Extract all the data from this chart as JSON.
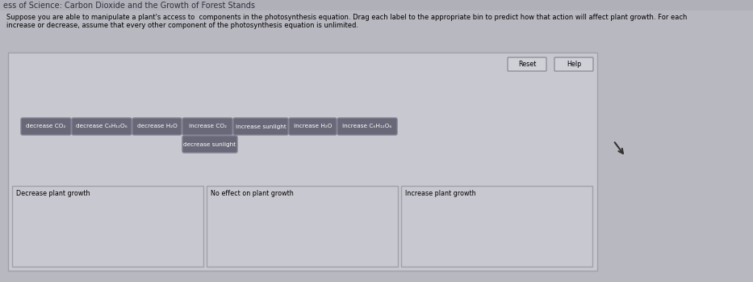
{
  "title_bar": "ess of Science: Carbon Dioxide and the Growth of Forest Stands",
  "instruction_line1": "Suppose you are able to manipulate a plant's access to  components in the photosynthesis equation. Drag each label to the appropriate bin to predict how that action will affect plant growth. For each",
  "instruction_line2": "increase or decrease, assume that every other component of the photosynthesis equation is unlimited.",
  "title_bg": "#b0b0b8",
  "body_bg": "#b8b8c0",
  "panel_bg": "#c8c8d0",
  "panel_border": "#a0a0a8",
  "btn_label_bg": "#686878",
  "btn_label_border": "#808090",
  "btn_label_text": "#ffffff",
  "reset_help_bg": "#d0d0d8",
  "reset_help_border": "#909098",
  "bin_bg": "#c8c8d0",
  "bin_border": "#a0a0a8",
  "labels_row1": [
    "decrease CO₂",
    "decrease C₆H₁₂O₆",
    "decrease H₂O",
    "increase CO₂",
    "increase sunlight",
    "increase H₂O",
    "increase C₆H₁₂O₆"
  ],
  "labels_row2": [
    "decrease sunlight"
  ],
  "bins": [
    "Decrease plant growth",
    "No effect on plant growth",
    "Increase plant growth"
  ],
  "figsize": [
    9.33,
    3.49
  ],
  "dpi": 100
}
